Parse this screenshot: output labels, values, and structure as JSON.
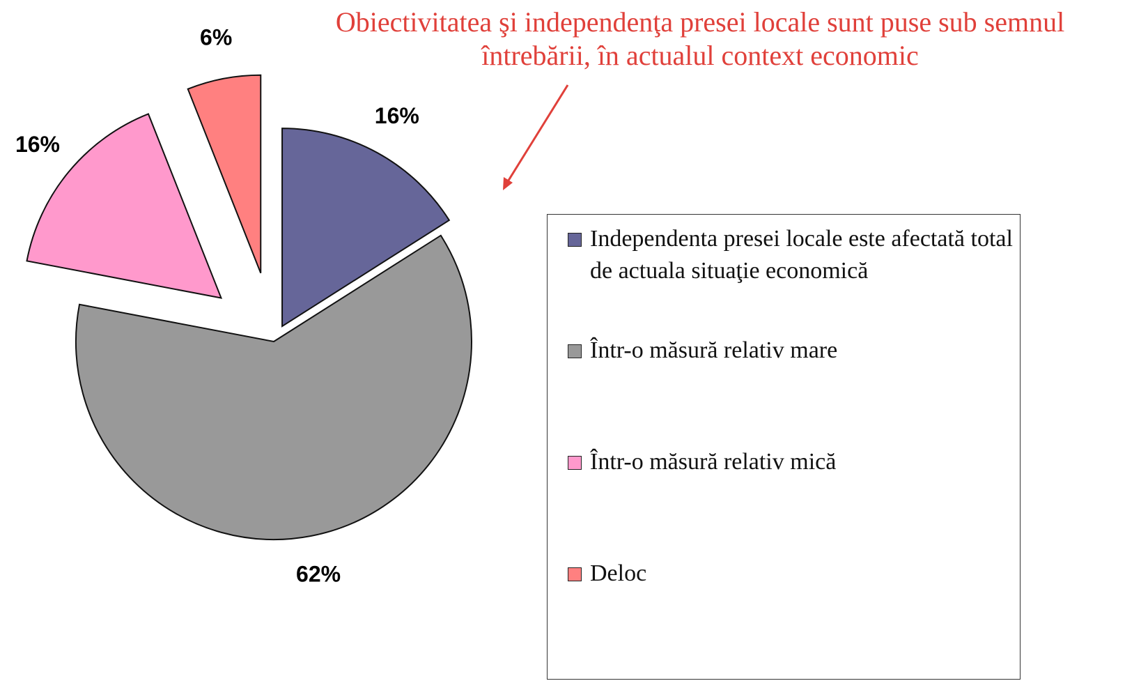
{
  "chart_data": {
    "type": "pie",
    "title": "Obiectivitatea şi independenţa presei locale sunt puse sub semnul întrebării, în actualul context economic",
    "categories": [
      "Independenta presei locale este afectată total de actuala situaţie economică",
      "Într-o măsură relativ mare",
      "Într-o măsură relativ mică",
      "Deloc"
    ],
    "values": [
      16,
      62,
      16,
      6
    ],
    "value_labels": [
      "16%",
      "62%",
      "16%",
      "6%"
    ],
    "colors": [
      "#666699",
      "#999999",
      "#ff99cc",
      "#ff8080"
    ],
    "legend": "right"
  }
}
